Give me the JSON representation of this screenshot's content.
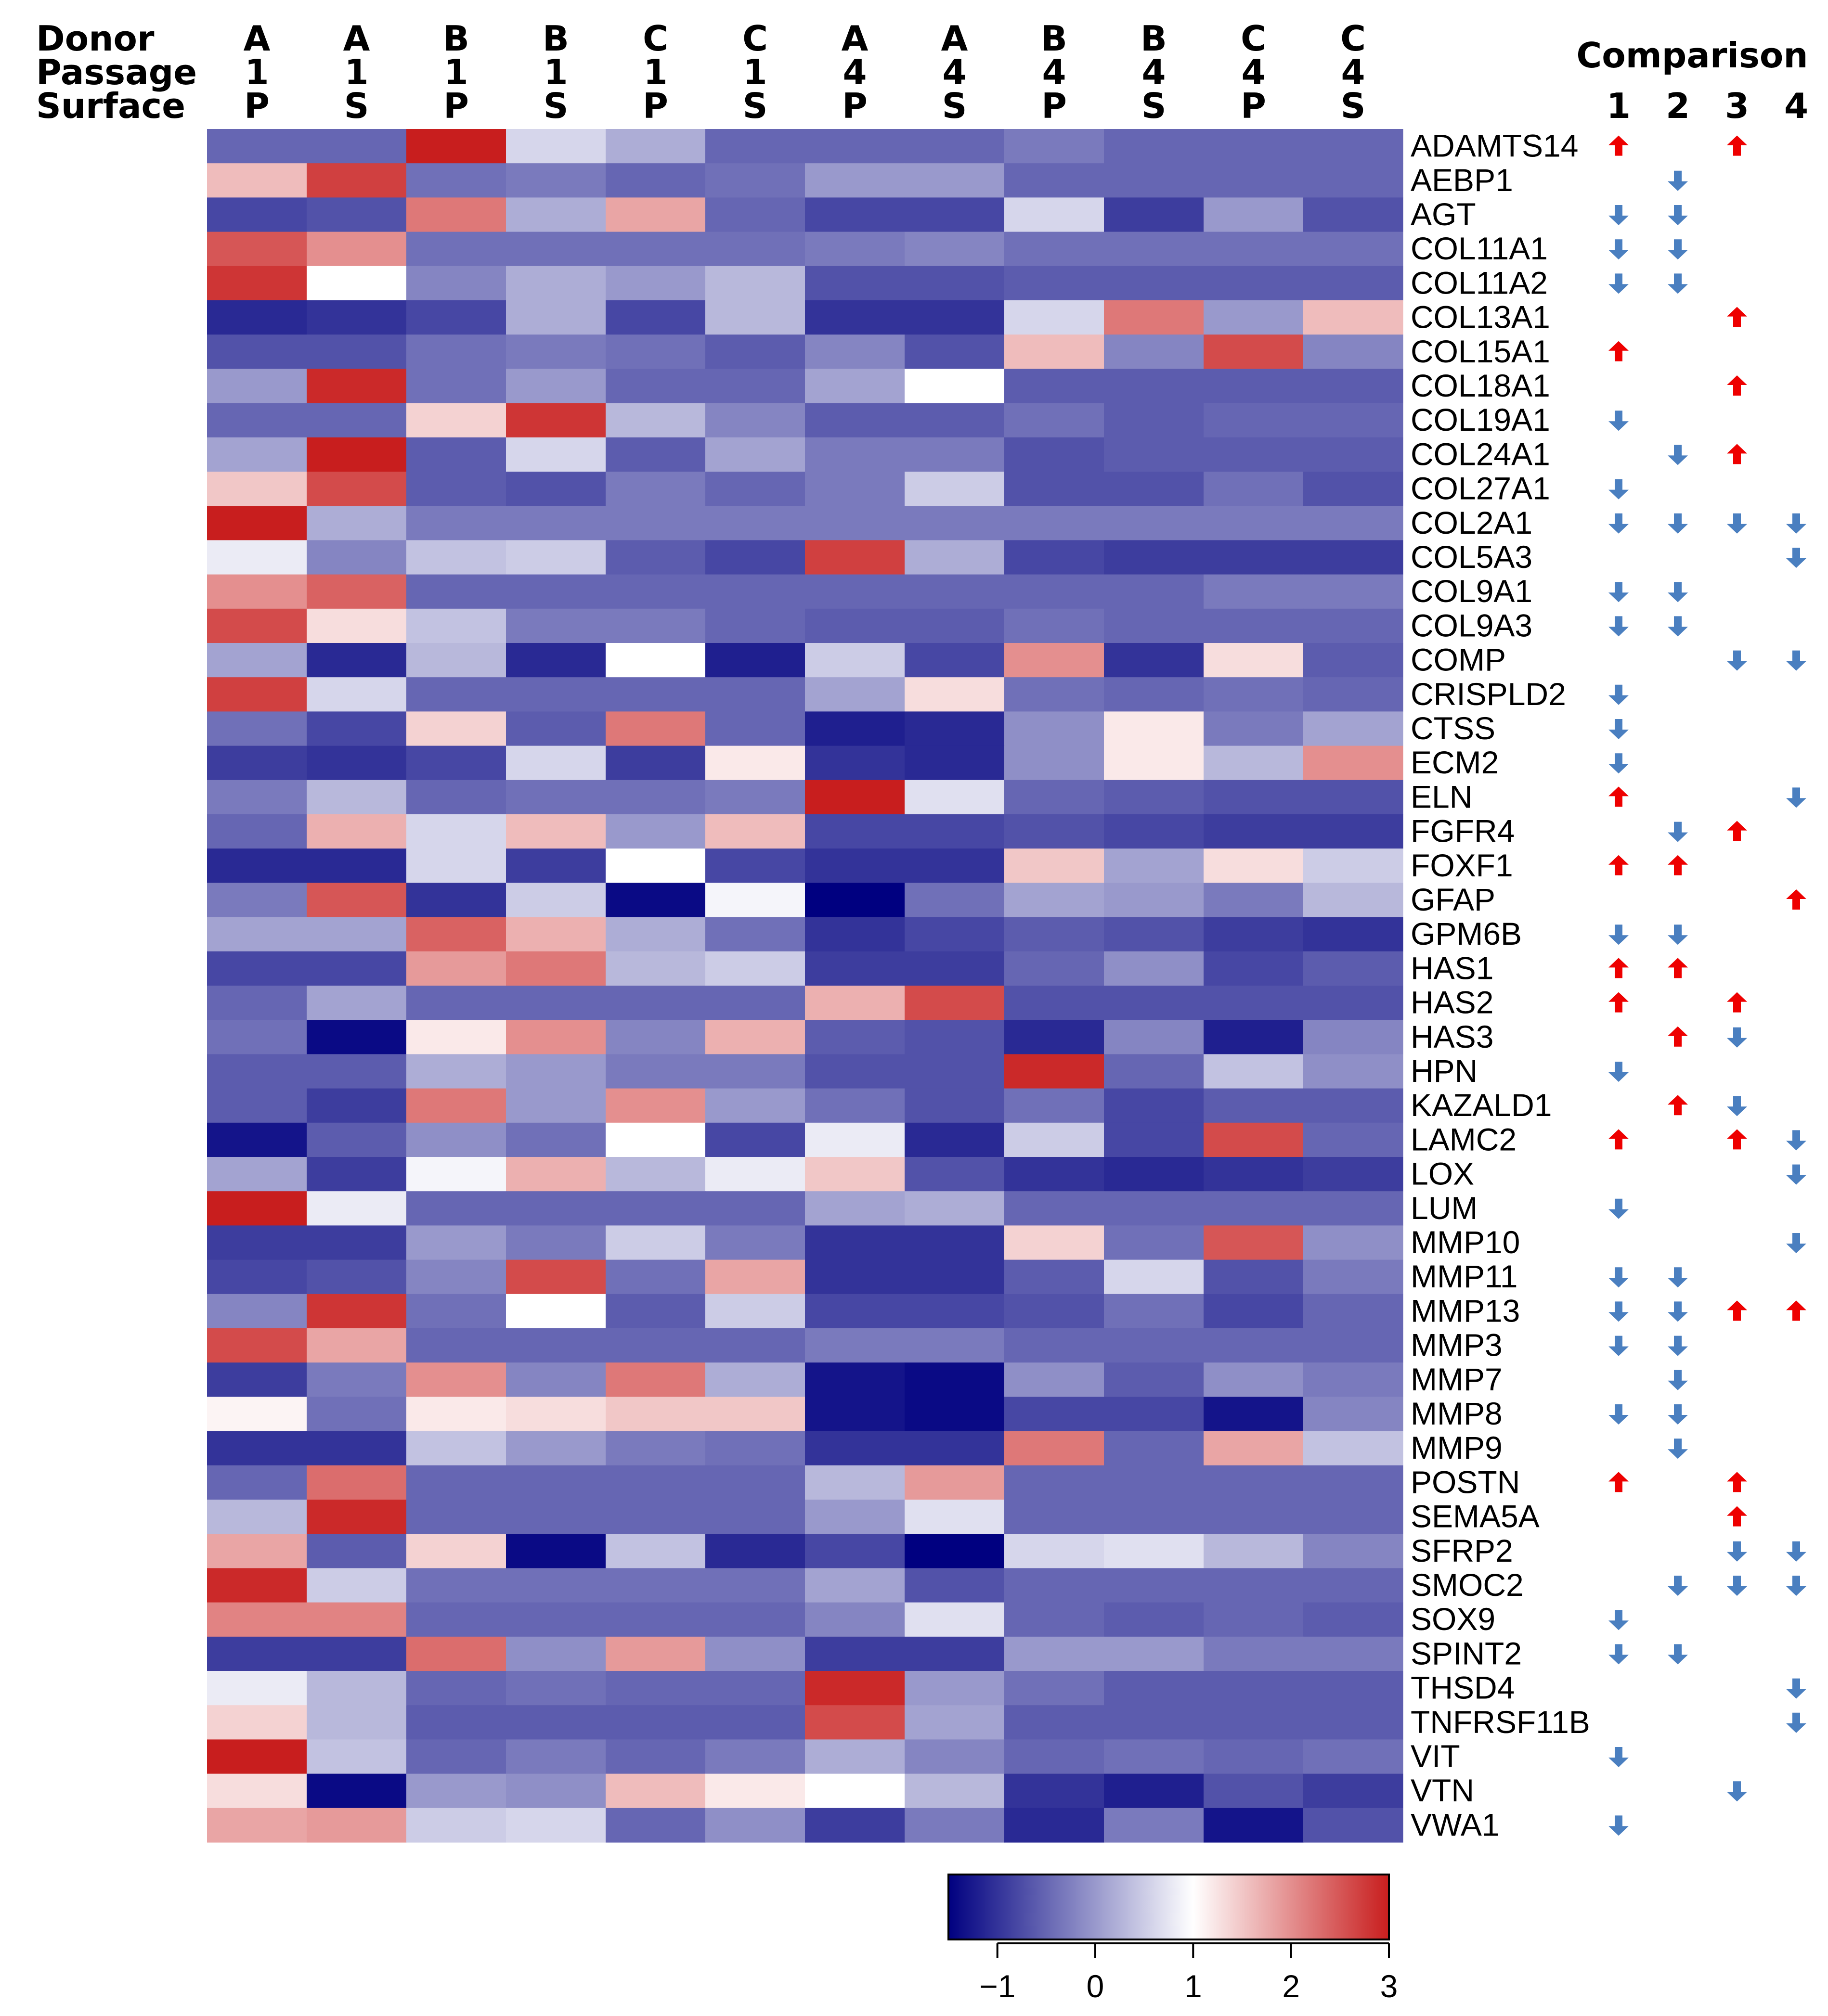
{
  "chart_data": {
    "type": "heatmap",
    "header_labels": [
      "Donor",
      "Passage",
      "Surface"
    ],
    "columns": [
      {
        "donor": "A",
        "passage": "1",
        "surface": "P"
      },
      {
        "donor": "A",
        "passage": "1",
        "surface": "S"
      },
      {
        "donor": "B",
        "passage": "1",
        "surface": "P"
      },
      {
        "donor": "B",
        "passage": "1",
        "surface": "S"
      },
      {
        "donor": "C",
        "passage": "1",
        "surface": "P"
      },
      {
        "donor": "C",
        "passage": "1",
        "surface": "S"
      },
      {
        "donor": "A",
        "passage": "4",
        "surface": "P"
      },
      {
        "donor": "A",
        "passage": "4",
        "surface": "S"
      },
      {
        "donor": "B",
        "passage": "4",
        "surface": "P"
      },
      {
        "donor": "B",
        "passage": "4",
        "surface": "S"
      },
      {
        "donor": "C",
        "passage": "4",
        "surface": "P"
      },
      {
        "donor": "C",
        "passage": "4",
        "surface": "S"
      }
    ],
    "genes": [
      "ADAMTS14",
      "AEBP1",
      "AGT",
      "COL11A1",
      "COL11A2",
      "COL13A1",
      "COL15A1",
      "COL18A1",
      "COL19A1",
      "COL24A1",
      "COL27A1",
      "COL2A1",
      "COL5A3",
      "COL9A1",
      "COL9A3",
      "COMP",
      "CRISPLD2",
      "CTSS",
      "ECM2",
      "ELN",
      "FGFR4",
      "FOXF1",
      "GFAP",
      "GPM6B",
      "HAS1",
      "HAS2",
      "HAS3",
      "HPN",
      "KAZALD1",
      "LAMC2",
      "LOX",
      "LUM",
      "MMP10",
      "MMP11",
      "MMP13",
      "MMP3",
      "MMP7",
      "MMP8",
      "MMP9",
      "POSTN",
      "SEMA5A",
      "SFRP2",
      "SMOC2",
      "SOX9",
      "SPINT2",
      "THSD4",
      "TNFRSF11B",
      "VIT",
      "VTN",
      "VWA1"
    ],
    "values": [
      [
        -0.5,
        -0.5,
        3.0,
        0.6,
        0.2,
        -0.5,
        -0.5,
        -0.5,
        -0.3,
        -0.5,
        -0.5,
        -0.5
      ],
      [
        1.6,
        2.7,
        -0.4,
        -0.3,
        -0.5,
        -0.4,
        0.0,
        0.0,
        -0.5,
        -0.5,
        -0.5,
        -0.5
      ],
      [
        -0.8,
        -0.7,
        2.2,
        0.2,
        1.8,
        -0.5,
        -0.8,
        -0.8,
        0.6,
        -0.9,
        0.0,
        -0.7
      ],
      [
        2.5,
        2.0,
        -0.4,
        -0.4,
        -0.4,
        -0.4,
        -0.3,
        -0.2,
        -0.4,
        -0.4,
        -0.4,
        -0.4
      ],
      [
        2.8,
        1.0,
        -0.2,
        0.2,
        0.0,
        0.3,
        -0.7,
        -0.7,
        -0.6,
        -0.6,
        -0.6,
        -0.6
      ],
      [
        -1.1,
        -1.0,
        -0.8,
        0.2,
        -0.8,
        0.3,
        -1.0,
        -1.0,
        0.6,
        2.2,
        0.0,
        1.6
      ],
      [
        -0.7,
        -0.7,
        -0.4,
        -0.3,
        -0.4,
        -0.6,
        -0.2,
        -0.7,
        1.6,
        -0.2,
        2.6,
        -0.2
      ],
      [
        0.0,
        2.9,
        -0.4,
        0.0,
        -0.5,
        -0.5,
        0.1,
        1.0,
        -0.6,
        -0.6,
        -0.6,
        -0.6
      ],
      [
        -0.5,
        -0.5,
        1.4,
        2.8,
        0.3,
        -0.2,
        -0.6,
        -0.6,
        -0.4,
        -0.6,
        -0.5,
        -0.5
      ],
      [
        0.1,
        3.0,
        -0.6,
        0.6,
        -0.6,
        0.1,
        -0.3,
        -0.3,
        -0.7,
        -0.6,
        -0.6,
        -0.6
      ],
      [
        1.5,
        2.6,
        -0.6,
        -0.7,
        -0.3,
        -0.5,
        -0.3,
        0.5,
        -0.7,
        -0.7,
        -0.4,
        -0.7
      ],
      [
        3.0,
        0.2,
        -0.3,
        -0.3,
        -0.3,
        -0.3,
        -0.3,
        -0.3,
        -0.3,
        -0.3,
        -0.3,
        -0.3
      ],
      [
        0.8,
        -0.2,
        0.4,
        0.5,
        -0.6,
        -0.8,
        2.7,
        0.2,
        -0.8,
        -0.9,
        -0.9,
        -0.9
      ],
      [
        2.0,
        2.4,
        -0.5,
        -0.5,
        -0.5,
        -0.5,
        -0.5,
        -0.5,
        -0.5,
        -0.5,
        -0.3,
        -0.3
      ],
      [
        2.6,
        1.3,
        0.4,
        -0.3,
        -0.3,
        -0.5,
        -0.6,
        -0.6,
        -0.4,
        -0.5,
        -0.5,
        -0.5
      ],
      [
        0.1,
        -1.1,
        0.3,
        -1.1,
        1.0,
        -1.2,
        0.5,
        -0.8,
        2.0,
        -1.0,
        1.3,
        -0.6
      ],
      [
        2.7,
        0.6,
        -0.5,
        -0.5,
        -0.5,
        -0.5,
        0.1,
        1.3,
        -0.4,
        -0.5,
        -0.4,
        -0.5
      ],
      [
        -0.4,
        -0.8,
        1.4,
        -0.6,
        2.2,
        -0.5,
        -1.2,
        -1.1,
        -0.1,
        1.2,
        -0.3,
        0.1
      ],
      [
        -0.9,
        -1.0,
        -0.8,
        0.6,
        -0.9,
        1.2,
        -1.0,
        -1.1,
        -0.1,
        1.2,
        0.3,
        2.0
      ],
      [
        -0.3,
        0.3,
        -0.5,
        -0.4,
        -0.4,
        -0.3,
        3.0,
        0.7,
        -0.5,
        -0.6,
        -0.7,
        -0.7
      ],
      [
        -0.5,
        1.7,
        0.6,
        1.6,
        0.0,
        1.6,
        -0.8,
        -0.8,
        -0.7,
        -0.8,
        -0.9,
        -0.9
      ],
      [
        -1.1,
        -1.1,
        0.6,
        -0.9,
        1.0,
        -0.8,
        -1.0,
        -1.0,
        1.5,
        0.1,
        1.3,
        0.5
      ],
      [
        -0.3,
        2.5,
        -1.0,
        0.5,
        -1.4,
        0.9,
        -1.5,
        -0.4,
        0.1,
        0.0,
        -0.3,
        0.3
      ],
      [
        0.1,
        0.1,
        2.4,
        1.7,
        0.2,
        -0.4,
        -1.0,
        -0.8,
        -0.6,
        -0.7,
        -0.9,
        -1.0
      ],
      [
        -0.8,
        -0.8,
        1.9,
        2.2,
        0.3,
        0.5,
        -0.9,
        -0.9,
        -0.5,
        -0.1,
        -0.8,
        -0.6
      ],
      [
        -0.5,
        0.1,
        -0.5,
        -0.5,
        -0.5,
        -0.5,
        1.7,
        2.6,
        -0.7,
        -0.7,
        -0.7,
        -0.7
      ],
      [
        -0.4,
        -1.4,
        1.2,
        2.0,
        -0.2,
        1.7,
        -0.6,
        -0.7,
        -1.1,
        -0.2,
        -1.2,
        -0.2
      ],
      [
        -0.6,
        -0.6,
        0.2,
        0.0,
        -0.3,
        -0.3,
        -0.7,
        -0.7,
        2.9,
        -0.5,
        0.4,
        -0.1
      ],
      [
        -0.6,
        -0.9,
        2.2,
        0.0,
        2.0,
        0.0,
        -0.4,
        -0.7,
        -0.4,
        -0.8,
        -0.6,
        -0.6
      ],
      [
        -1.3,
        -0.6,
        -0.1,
        -0.4,
        1.0,
        -0.8,
        0.8,
        -1.1,
        0.5,
        -0.8,
        2.6,
        -0.5
      ],
      [
        0.1,
        -0.9,
        0.9,
        1.7,
        0.3,
        0.8,
        1.5,
        -0.7,
        -1.0,
        -1.1,
        -1.0,
        -0.9
      ],
      [
        3.0,
        0.8,
        -0.5,
        -0.5,
        -0.5,
        -0.5,
        0.1,
        0.2,
        -0.5,
        -0.5,
        -0.5,
        -0.5
      ],
      [
        -0.9,
        -0.9,
        0.0,
        -0.3,
        0.5,
        -0.3,
        -1.0,
        -1.0,
        1.4,
        -0.4,
        2.5,
        -0.1
      ],
      [
        -0.8,
        -0.7,
        -0.2,
        2.6,
        -0.4,
        1.8,
        -1.0,
        -1.0,
        -0.6,
        0.6,
        -0.7,
        -0.3
      ],
      [
        -0.2,
        2.8,
        -0.4,
        1.0,
        -0.6,
        0.5,
        -0.8,
        -0.8,
        -0.7,
        -0.4,
        -0.8,
        -0.5
      ],
      [
        2.6,
        1.8,
        -0.5,
        -0.5,
        -0.5,
        -0.5,
        -0.3,
        -0.3,
        -0.5,
        -0.5,
        -0.5,
        -0.5
      ],
      [
        -0.9,
        -0.3,
        2.0,
        -0.2,
        2.2,
        0.2,
        -1.3,
        -1.4,
        -0.1,
        -0.6,
        -0.1,
        -0.3
      ],
      [
        1.1,
        -0.4,
        1.2,
        1.3,
        1.5,
        1.5,
        -1.3,
        -1.4,
        -0.8,
        -0.8,
        -1.3,
        -0.2
      ],
      [
        -1.0,
        -1.0,
        0.4,
        0.0,
        -0.3,
        -0.4,
        -1.0,
        -1.0,
        2.2,
        -0.5,
        1.8,
        0.4
      ],
      [
        -0.5,
        2.3,
        -0.5,
        -0.5,
        -0.5,
        -0.5,
        0.3,
        1.9,
        -0.5,
        -0.5,
        -0.5,
        -0.5
      ],
      [
        0.3,
        2.9,
        -0.5,
        -0.5,
        -0.5,
        -0.5,
        0.0,
        0.7,
        -0.5,
        -0.5,
        -0.5,
        -0.5
      ],
      [
        1.8,
        -0.6,
        1.4,
        -1.4,
        0.4,
        -1.1,
        -0.8,
        -1.5,
        0.6,
        0.7,
        0.3,
        -0.2
      ],
      [
        2.9,
        0.5,
        -0.4,
        -0.4,
        -0.4,
        -0.4,
        0.1,
        -0.7,
        -0.5,
        -0.5,
        -0.5,
        -0.5
      ],
      [
        2.1,
        2.1,
        -0.5,
        -0.5,
        -0.5,
        -0.5,
        -0.2,
        0.7,
        -0.5,
        -0.6,
        -0.5,
        -0.6
      ],
      [
        -0.9,
        -0.9,
        2.3,
        -0.1,
        1.9,
        -0.1,
        -0.9,
        -0.9,
        0.0,
        0.0,
        -0.3,
        -0.3
      ],
      [
        0.8,
        0.3,
        -0.5,
        -0.4,
        -0.5,
        -0.5,
        2.9,
        0.0,
        -0.4,
        -0.6,
        -0.6,
        -0.6
      ],
      [
        1.4,
        0.3,
        -0.6,
        -0.6,
        -0.6,
        -0.6,
        2.6,
        0.1,
        -0.6,
        -0.6,
        -0.6,
        -0.6
      ],
      [
        3.0,
        0.4,
        -0.5,
        -0.3,
        -0.5,
        -0.3,
        0.2,
        -0.2,
        -0.5,
        -0.4,
        -0.5,
        -0.4
      ],
      [
        1.3,
        -1.4,
        0.0,
        -0.1,
        1.6,
        1.2,
        1.0,
        0.3,
        -1.0,
        -1.2,
        -0.7,
        -0.9
      ],
      [
        1.8,
        1.9,
        0.5,
        0.6,
        -0.5,
        -0.1,
        -0.9,
        -0.3,
        -1.1,
        -0.3,
        -1.3,
        -0.7
      ]
    ],
    "comparison_title": "Comparison",
    "comparison_labels": [
      "1",
      "2",
      "3",
      "4"
    ],
    "comparisons": {
      "ADAMTS14": [
        "up",
        "",
        "up",
        ""
      ],
      "AEBP1": [
        "",
        "down",
        "",
        ""
      ],
      "AGT": [
        "down",
        "down",
        "",
        ""
      ],
      "COL11A1": [
        "down",
        "down",
        "",
        ""
      ],
      "COL11A2": [
        "down",
        "down",
        "",
        ""
      ],
      "COL13A1": [
        "",
        "",
        "up",
        ""
      ],
      "COL15A1": [
        "up",
        "",
        "",
        ""
      ],
      "COL18A1": [
        "",
        "",
        "up",
        ""
      ],
      "COL19A1": [
        "down",
        "",
        "",
        ""
      ],
      "COL24A1": [
        "",
        "down",
        "up",
        ""
      ],
      "COL27A1": [
        "down",
        "",
        "",
        ""
      ],
      "COL2A1": [
        "down",
        "down",
        "down",
        "down"
      ],
      "COL5A3": [
        "",
        "",
        "",
        "down"
      ],
      "COL9A1": [
        "down",
        "down",
        "",
        ""
      ],
      "COL9A3": [
        "down",
        "down",
        "",
        ""
      ],
      "COMP": [
        "",
        "",
        "down",
        "down"
      ],
      "CRISPLD2": [
        "down",
        "",
        "",
        ""
      ],
      "CTSS": [
        "down",
        "",
        "",
        ""
      ],
      "ECM2": [
        "down",
        "",
        "",
        ""
      ],
      "ELN": [
        "up",
        "",
        "",
        "down"
      ],
      "FGFR4": [
        "",
        "down",
        "up",
        ""
      ],
      "FOXF1": [
        "up",
        "up",
        "",
        ""
      ],
      "GFAP": [
        "",
        "",
        "",
        "up"
      ],
      "GPM6B": [
        "down",
        "down",
        "",
        ""
      ],
      "HAS1": [
        "up",
        "up",
        "",
        ""
      ],
      "HAS2": [
        "up",
        "",
        "up",
        ""
      ],
      "HAS3": [
        "",
        "up",
        "down",
        ""
      ],
      "HPN": [
        "down",
        "",
        "",
        ""
      ],
      "KAZALD1": [
        "",
        "up",
        "down",
        ""
      ],
      "LAMC2": [
        "up",
        "",
        "up",
        "down"
      ],
      "LOX": [
        "",
        "",
        "",
        "down"
      ],
      "LUM": [
        "down",
        "",
        "",
        ""
      ],
      "MMP10": [
        "",
        "",
        "",
        "down"
      ],
      "MMP11": [
        "down",
        "down",
        "",
        ""
      ],
      "MMP13": [
        "down",
        "down",
        "up",
        "up"
      ],
      "MMP3": [
        "down",
        "down",
        "",
        ""
      ],
      "MMP7": [
        "",
        "down",
        "",
        ""
      ],
      "MMP8": [
        "down",
        "down",
        "",
        ""
      ],
      "MMP9": [
        "",
        "down",
        "",
        ""
      ],
      "POSTN": [
        "up",
        "",
        "up",
        ""
      ],
      "SEMA5A": [
        "",
        "",
        "up",
        ""
      ],
      "SFRP2": [
        "",
        "",
        "down",
        "down"
      ],
      "SMOC2": [
        "",
        "down",
        "down",
        "down"
      ],
      "SOX9": [
        "down",
        "",
        "",
        ""
      ],
      "SPINT2": [
        "down",
        "down",
        "",
        ""
      ],
      "THSD4": [
        "",
        "",
        "",
        "down"
      ],
      "TNFRSF11B": [
        "",
        "",
        "",
        "down"
      ],
      "VIT": [
        "down",
        "",
        "",
        ""
      ],
      "VTN": [
        "",
        "",
        "down",
        ""
      ],
      "VWA1": [
        "down",
        "",
        "",
        ""
      ]
    },
    "colorbar": {
      "min": -1.5,
      "max": 3.0,
      "ticks": [
        -1,
        0,
        1,
        2,
        3
      ],
      "tick_labels": [
        "−1",
        "0",
        "1",
        "2",
        "3"
      ],
      "colors": [
        "#000080",
        "#ffffff",
        "#c81e1e"
      ]
    },
    "colors": {
      "up_arrow": "#ee0000",
      "down_arrow": "#4a7fc0"
    }
  }
}
